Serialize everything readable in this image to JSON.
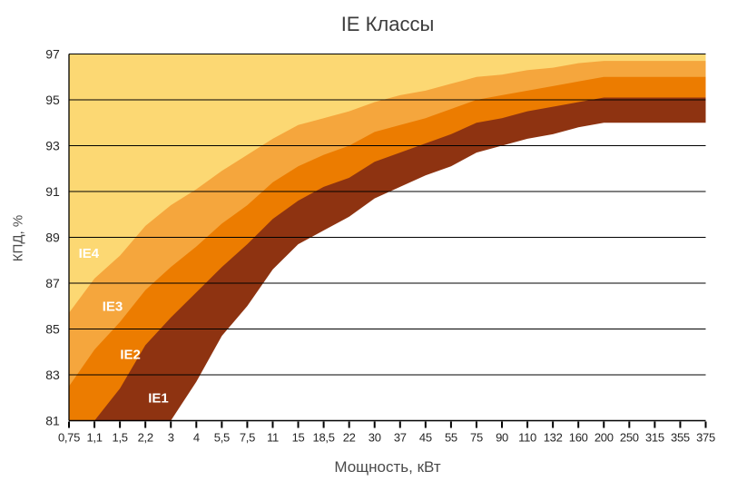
{
  "title": "IE Классы",
  "chart_data": {
    "type": "area",
    "title": "IE Классы",
    "xlabel": "Мощность, кВт",
    "ylabel": "КПД, %",
    "ylim": [
      81,
      97
    ],
    "y_ticks": [
      97,
      95,
      93,
      91,
      89,
      87,
      85,
      83,
      81
    ],
    "grid": true,
    "legend_position": "labels-inside-bands",
    "categories": [
      "0,75",
      "1,1",
      "1,5",
      "2,2",
      "3",
      "4",
      "5,5",
      "7,5",
      "11",
      "15",
      "18,5",
      "22",
      "30",
      "37",
      "45",
      "55",
      "75",
      "90",
      "110",
      "132",
      "160",
      "200",
      "250",
      "315",
      "355",
      "375"
    ],
    "series": [
      {
        "name": "IE1",
        "color": "#8E3311",
        "values": [
          72.1,
          75.0,
          77.2,
          79.7,
          80.5,
          82.7,
          84.7,
          86.0,
          87.6,
          88.7,
          89.3,
          89.9,
          90.7,
          91.2,
          91.7,
          92.1,
          92.7,
          93.0,
          93.3,
          93.5,
          93.8,
          94.0,
          94.0,
          94.0,
          94.0,
          94.0
        ]
      },
      {
        "name": "IE2",
        "color": "#EC7C00",
        "values": [
          79.6,
          80.8,
          82.4,
          84.3,
          85.5,
          86.6,
          87.7,
          88.7,
          89.8,
          90.6,
          91.2,
          91.6,
          92.3,
          92.7,
          93.1,
          93.5,
          94.0,
          94.2,
          94.5,
          94.7,
          94.9,
          95.1,
          95.1,
          95.1,
          95.1,
          95.1
        ]
      },
      {
        "name": "IE3",
        "color": "#F5A63D",
        "values": [
          82.5,
          84.1,
          85.3,
          86.7,
          87.7,
          88.6,
          89.6,
          90.4,
          91.4,
          92.1,
          92.6,
          93.0,
          93.6,
          93.9,
          94.2,
          94.6,
          95.0,
          95.2,
          95.4,
          95.6,
          95.8,
          96.0,
          96.0,
          96.0,
          96.0,
          96.0
        ]
      },
      {
        "name": "IE4",
        "color": "#FCD873",
        "values": [
          85.7,
          87.2,
          88.2,
          89.5,
          90.4,
          91.1,
          91.9,
          92.6,
          93.3,
          93.9,
          94.2,
          94.5,
          94.9,
          95.2,
          95.4,
          95.7,
          96.0,
          96.1,
          96.3,
          96.4,
          96.6,
          96.7,
          96.7,
          96.7,
          96.7,
          96.7
        ]
      }
    ],
    "band_labels": [
      {
        "text": "IE4",
        "x_index": 0.78,
        "y_value": 88.3
      },
      {
        "text": "IE3",
        "x_index": 1.71,
        "y_value": 86.0
      },
      {
        "text": "IE2",
        "x_index": 2.41,
        "y_value": 83.9
      },
      {
        "text": "IE1",
        "x_index": 3.51,
        "y_value": 82.0
      }
    ],
    "colors": {
      "background": "#FFFFFF",
      "below_ie1_area": "#FFFFFF",
      "grid": "#000000",
      "axis": "#000000",
      "tick_text": "#262626",
      "title_text": "#3C3C3C",
      "axis_title_text": "#4A4A4A",
      "band_label_text": "#FFFFFF"
    }
  }
}
